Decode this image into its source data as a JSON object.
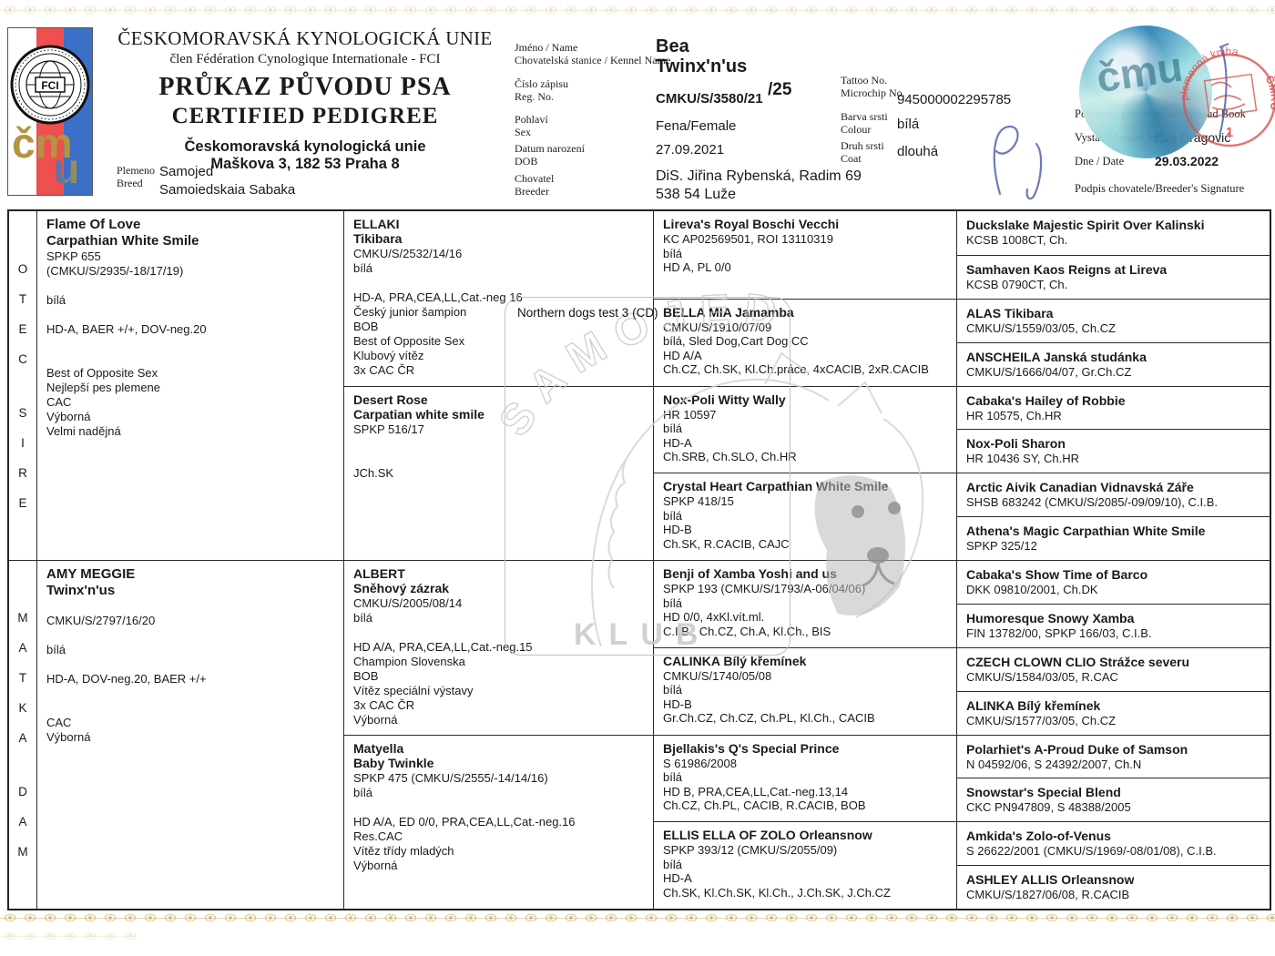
{
  "colors": {
    "accent_gold": "#c8ae6a",
    "stamp_red": "#d9534f",
    "holo_teal": "#57b3cf",
    "signature_blue": "#5f6cb0"
  },
  "header": {
    "union_name": "ČESKOMORAVSKÁ KYNOLOGICKÁ UNIE",
    "union_member": "člen Fédération Cynologique Internationale - FCI",
    "title_cz": "PRŮKAZ PŮVODU PSA",
    "title_en": "CERTIFIED PEDIGREE",
    "org_name": "Českomoravská kynologická unie",
    "org_address": "Maškova 3, 182 53 Praha 8",
    "breed_label": "Plemeno\nBreed",
    "breed_value1": "Samojed",
    "breed_value2": "Samoiedskaia Sabaka",
    "fci_text": "FCI",
    "monogram_cm": "čm",
    "monogram_u": "u"
  },
  "info": {
    "name_label": "Jméno / Name",
    "kennel_label": "Chovatelská stanice / Kennel Name",
    "name_value": "Bea",
    "kennel_value": "Twinx'n'us",
    "reg_label": "Číslo zápisu\nReg. No.",
    "reg_value": "CMKU/S/3580/21",
    "reg_suffix": "/25",
    "sex_label": "Pohlaví\nSex",
    "sex_value": "Fena/Female",
    "dob_label": "Datum narození\nDOB",
    "dob_value": "27.09.2021",
    "breeder_label": "Chovatel\nBreeder",
    "breeder_value1": "DiS. Jiřina Rybenská, Radim 69",
    "breeder_value2": "538 54 Luže",
    "tattoo_label": "Tattoo No.\nMicrochip No.",
    "microchip_value": "945000002295785",
    "colour_label": "Barva srsti\nColour",
    "colour_value": "bílá",
    "coat_label": "Druh srsti\nCoat",
    "coat_value": "dlouhá"
  },
  "studbook": {
    "confirm_label": "Potvrzení plemenné knihy/Stud Book",
    "issued_label": "Vystavil/Issued by",
    "issued_value": "Eva Dragović",
    "date_label": "Dne / Date",
    "date_value": "29.03.2022",
    "signature_label": "Podpis chovatele/Breeder's Signature",
    "stamp_arc_text": "plemenná kniha",
    "stamp_org": "ČMKU",
    "stamp_number": "1"
  },
  "watermark": {
    "club_line1": "SAMOJED",
    "club_line2": "KLUB",
    "note": "Northern dogs test 3 (CD)"
  },
  "pedigree": {
    "sire_word_cz": "O\nT\nE\nC",
    "sire_word_en": "S\nI\nR\nE",
    "dam_word_cz": "M\nA\nT\nK\nA",
    "dam_word_en": "D\nA\nM",
    "gen1": [
      {
        "name": [
          "Flame Of Love",
          "Carpathian White Smile"
        ],
        "lines": [
          "SPKP 655",
          "(CMKU/S/2935/-18/17/19)",
          "",
          "bílá",
          "",
          "HD-A, BAER +/+, DOV-neg.20",
          "",
          "",
          "Best of Opposite Sex",
          "Nejlepší pes plemene",
          "CAC",
          "Výborná",
          "Velmi nadějná"
        ]
      },
      {
        "name": [
          "AMY MEGGIE",
          "Twinx'n'us"
        ],
        "lines": [
          "",
          "CMKU/S/2797/16/20",
          "",
          "bílá",
          "",
          "HD-A, DOV-neg.20, BAER +/+",
          "",
          "",
          "CAC",
          "Výborná"
        ]
      }
    ],
    "gen2": [
      {
        "name": [
          "ELLAKI",
          "Tikibara"
        ],
        "lines": [
          "CMKU/S/2532/14/16",
          "bílá",
          "",
          "HD-A, PRA,CEA,LL,Cat.-neg 16",
          "Český junior šampion",
          "BOB",
          "Best of Opposite Sex",
          "Klubový vítěz",
          "3x CAC ČR"
        ]
      },
      {
        "name": [
          "Desert Rose",
          "Carpatian white smile"
        ],
        "lines": [
          "SPKP 516/17",
          "",
          "",
          "JCh.SK"
        ]
      },
      {
        "name": [
          "ALBERT",
          "Sněhový zázrak"
        ],
        "lines": [
          "CMKU/S/2005/08/14",
          "bílá",
          "",
          "HD A/A, PRA,CEA,LL,Cat.-neg.15",
          "Champion Slovenska",
          "BOB",
          "Vítěz speciální výstavy",
          "3x CAC ČR",
          "Výborná"
        ]
      },
      {
        "name": [
          "Matyella",
          "Baby Twinkle"
        ],
        "lines": [
          "SPKP 475 (CMKU/S/2555/-14/14/16)",
          "bílá",
          "",
          "HD A/A, ED 0/0, PRA,CEA,LL,Cat.-neg.16",
          "Res.CAC",
          "Vítěz třídy mladých",
          "Výborná"
        ]
      }
    ],
    "gen3": [
      {
        "name": [
          "Lireva's Royal Boschi Vecchi"
        ],
        "lines": [
          "KC AP02569501, ROI 13110319",
          "bílá",
          "HD A, PL 0/0"
        ]
      },
      {
        "name": [
          "BELLA MIA Jamamba"
        ],
        "lines": [
          "CMKU/S/1910/07/09",
          "bílá, Sled Dog,Cart Dog CC",
          "HD A/A",
          "Ch.CZ, Ch.SK, Kl.Ch.práce, 4xCACIB, 2xR.CACIB"
        ]
      },
      {
        "name": [
          "Nox-Poli Witty Wally"
        ],
        "lines": [
          "HR 10597",
          "bílá",
          "HD-A",
          "Ch.SRB, Ch.SLO, Ch.HR"
        ]
      },
      {
        "name": [
          "Crystal Heart Carpathian White Smile"
        ],
        "lines": [
          "SPKP 418/15",
          "bílá",
          "HD-B",
          "Ch.SK, R.CACIB, CAJC"
        ]
      },
      {
        "name": [
          "Benji of Xamba Yoshi and us"
        ],
        "lines": [
          "SPKP 193 (CMKU/S/1793/A-06/04/06)",
          "bílá",
          "HD 0/0, 4xKl.vít.ml.",
          "C.I.B., Ch.CZ, Ch.A, Kl.Ch., BIS"
        ]
      },
      {
        "name": [
          "CALINKA Bílý křemínek"
        ],
        "lines": [
          "CMKU/S/1740/05/08",
          "bílá",
          "HD-B",
          "Gr.Ch.CZ, Ch.CZ, Ch.PL, Kl.Ch., CACIB"
        ]
      },
      {
        "name": [
          "Bjellakis's Q's Special Prince"
        ],
        "lines": [
          "S 61986/2008",
          "bílá",
          "HD B, PRA,CEA,LL,Cat.-neg.13,14",
          "Ch.CZ, Ch.PL, CACIB, R.CACIB, BOB"
        ]
      },
      {
        "name": [
          "ELLIS ELLA OF ZOLO Orleansnow"
        ],
        "lines": [
          "SPKP 393/12 (CMKU/S/2055/09)",
          "bílá",
          "HD-A",
          "Ch.SK, Kl.Ch.SK, Kl.Ch., J.Ch.SK, J.Ch.CZ"
        ]
      }
    ],
    "gen4": [
      {
        "name": [
          "Duckslake Majestic Spirit Over Kalinski"
        ],
        "lines": [
          "KCSB 1008CT, Ch."
        ]
      },
      {
        "name": [
          "Samhaven Kaos Reigns at Lireva"
        ],
        "lines": [
          "KCSB 0790CT, Ch."
        ]
      },
      {
        "name": [
          "ALAS Tikibara"
        ],
        "lines": [
          "CMKU/S/1559/03/05, Ch.CZ"
        ]
      },
      {
        "name": [
          "ANSCHEILA Janská studánka"
        ],
        "lines": [
          "CMKU/S/1666/04/07, Gr.Ch.CZ"
        ]
      },
      {
        "name": [
          "Cabaka's Hailey of Robbie"
        ],
        "lines": [
          "HR 10575, Ch.HR"
        ]
      },
      {
        "name": [
          "Nox-Poli Sharon"
        ],
        "lines": [
          "HR 10436 SY, Ch.HR"
        ]
      },
      {
        "name": [
          "Arctic Aivik Canadian Vidnavská Záře"
        ],
        "lines": [
          "SHSB 683242 (CMKU/S/2085/-09/09/10), C.I.B."
        ]
      },
      {
        "name": [
          "Athena's Magic Carpathian White Smile"
        ],
        "lines": [
          "SPKP 325/12"
        ]
      },
      {
        "name": [
          "Cabaka's Show Time of Barco"
        ],
        "lines": [
          "DKK 09810/2001, Ch.DK"
        ]
      },
      {
        "name": [
          "Humoresque Snowy Xamba"
        ],
        "lines": [
          "FIN 13782/00, SPKP 166/03, C.I.B."
        ]
      },
      {
        "name": [
          "CZECH CLOWN CLIO Strážce severu"
        ],
        "lines": [
          "CMKU/S/1584/03/05, R.CAC"
        ]
      },
      {
        "name": [
          "ALINKA Bílý křemínek"
        ],
        "lines": [
          "CMKU/S/1577/03/05, Ch.CZ"
        ]
      },
      {
        "name": [
          "Polarhiet's A-Proud Duke of Samson"
        ],
        "lines": [
          "N 04592/06, S 24392/2007, Ch.N"
        ]
      },
      {
        "name": [
          "Snowstar's Special Blend"
        ],
        "lines": [
          "CKC PN947809, S 48388/2005"
        ]
      },
      {
        "name": [
          "Amkida's Zolo-of-Venus"
        ],
        "lines": [
          "S 26622/2001 (CMKU/S/1969/-08/01/08), C.I.B."
        ]
      },
      {
        "name": [
          "ASHLEY ALLIS Orleansnow"
        ],
        "lines": [
          "CMKU/S/1827/06/08, R.CACIB"
        ]
      }
    ]
  }
}
